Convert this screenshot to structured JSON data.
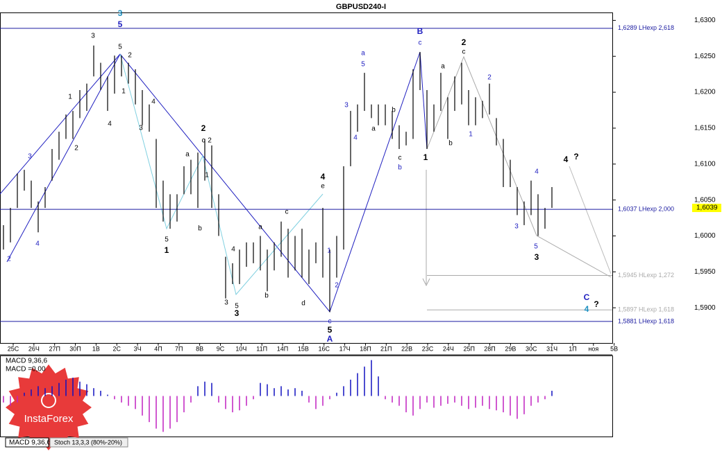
{
  "chart_data": {
    "type": "ohlc",
    "title": "GBPUSD240-I",
    "high": [
      1.6015,
      1.6039,
      1.6087,
      1.6092,
      1.6077,
      1.6048,
      1.6068,
      1.6121,
      1.6145,
      1.6169,
      1.6174,
      1.6203,
      1.6212,
      1.6265,
      1.6241,
      1.6222,
      1.6251,
      1.6251,
      1.6241,
      1.6232,
      1.6203,
      1.6183,
      1.6135,
      1.6077,
      1.6058,
      1.6058,
      1.6097,
      1.6106,
      1.6116,
      1.6135,
      1.6126,
      1.6058,
      1.5971,
      1.5962,
      1.5981,
      1.5991,
      1.5991,
      1.6,
      1.5981,
      1.5991,
      1.602,
      1.601,
      1.6,
      1.601,
      1.5981,
      1.5991,
      1.6039,
      1.5981,
      1.6,
      1.6097,
      1.6174,
      1.6183,
      1.6227,
      1.6183,
      1.6183,
      1.6183,
      1.6174,
      1.6154,
      1.6145,
      1.6232,
      1.6256,
      1.6203,
      1.6183,
      1.6227,
      1.6193,
      1.6222,
      1.6241,
      1.6203,
      1.6193,
      1.6188,
      1.6212,
      1.6164,
      1.6135,
      1.6106,
      1.6068,
      1.6048,
      1.6077,
      1.6058,
      1.6039,
      1.6068
    ],
    "low": [
      1.5981,
      1.5991,
      1.6039,
      1.6063,
      1.6039,
      1.6005,
      1.6039,
      1.6077,
      1.6106,
      1.6135,
      1.6135,
      1.6164,
      1.6174,
      1.6222,
      1.6203,
      1.6174,
      1.6198,
      1.6222,
      1.6212,
      1.6183,
      1.6154,
      1.6145,
      1.6039,
      1.602,
      1.601,
      1.602,
      1.6058,
      1.6058,
      1.6039,
      1.6077,
      1.6039,
      1.6,
      1.5913,
      1.5933,
      1.5933,
      1.5957,
      1.5962,
      1.5952,
      1.5923,
      1.5952,
      1.5971,
      1.5942,
      1.5952,
      1.5942,
      1.5933,
      1.5962,
      1.5942,
      1.5894,
      1.5942,
      1.5981,
      1.6097,
      1.6145,
      1.6174,
      1.6164,
      1.6154,
      1.6154,
      1.6135,
      1.6121,
      1.6126,
      1.6135,
      1.6203,
      1.6121,
      1.6145,
      1.6174,
      1.6135,
      1.6174,
      1.6183,
      1.6154,
      1.6154,
      1.6164,
      1.6169,
      1.6126,
      1.6068,
      1.6068,
      1.6029,
      1.6015,
      1.6029,
      1.6,
      1.601,
      1.6039
    ],
    "categories": [
      "25C",
      "26Ч",
      "27П",
      "30П",
      "1В",
      "2С",
      "3Ч",
      "4П",
      "7П",
      "8В",
      "9С",
      "10Ч",
      "11П",
      "14П",
      "15В",
      "16С",
      "17Ч",
      "18П",
      "21П",
      "22В",
      "23С",
      "24Ч",
      "25П",
      "28П",
      "29В",
      "30С",
      "31Ч",
      "1П",
      "ноя",
      "5В"
    ],
    "ylim": [
      1.5851,
      1.6311
    ],
    "yticks": [
      {
        "value": 1.63,
        "label": "1,6300"
      },
      {
        "value": 1.625,
        "label": "1,6250"
      },
      {
        "value": 1.62,
        "label": "1,6200"
      },
      {
        "value": 1.615,
        "label": "1,6150"
      },
      {
        "value": 1.61,
        "label": "1,6100"
      },
      {
        "value": 1.605,
        "label": "1,6050"
      },
      {
        "value": 1.6,
        "label": "1,6000"
      },
      {
        "value": 1.595,
        "label": "1,5950"
      },
      {
        "value": 1.59,
        "label": "1,5900"
      }
    ],
    "levels": [
      {
        "value": 1.6289,
        "label": "1,6289 LHexp 2,618",
        "color": "#1a1aa0"
      },
      {
        "value": 1.6037,
        "label": "1,6037 LHexp 2,000",
        "color": "#1a1aa0"
      },
      {
        "value": 1.5881,
        "label": "1,5881 LHexp 1,618",
        "color": "#1a1aa0"
      },
      {
        "value": 1.5945,
        "label": "1,5945 HLexp 1,272",
        "color": "#aaaaaa"
      },
      {
        "value": 1.5897,
        "label": "1,5897 HLexp 1,618",
        "color": "#aaaaaa"
      }
    ],
    "last_price": {
      "value": 1.6039,
      "label": "1,6039"
    },
    "annotations": [
      "3",
      "5",
      "5",
      "3",
      "2",
      "1",
      "4",
      "3",
      "4",
      "1",
      "2",
      "3",
      "4",
      "2",
      "2",
      "c",
      "2",
      "a",
      "1",
      "b",
      "5",
      "1",
      "4",
      "3",
      "5",
      "3",
      "b",
      "a",
      "c",
      "d",
      "4",
      "e",
      "1",
      "2",
      "c",
      "5",
      "A",
      "3",
      "4",
      "a",
      "5",
      "b",
      "a",
      "c",
      "b",
      "B",
      "c",
      "1",
      "a",
      "b",
      "2",
      "c",
      "1",
      "2",
      "4",
      "3",
      "5",
      "3",
      "4",
      "?",
      "C",
      "4",
      "?"
    ],
    "macd": {
      "label": "MACD 9,36,6",
      "value_text": "MACD =0,00",
      "ylim": [
        -60,
        60
      ],
      "values": [
        -10,
        -15,
        -10,
        5,
        10,
        15,
        12,
        15,
        20,
        25,
        28,
        22,
        18,
        12,
        8,
        2,
        -5,
        -10,
        -15,
        -20,
        -30,
        -40,
        -50,
        -55,
        -50,
        -40,
        -25,
        -10,
        15,
        22,
        20,
        -10,
        -20,
        -25,
        -22,
        -15,
        -5,
        20,
        18,
        12,
        15,
        10,
        12,
        8,
        -10,
        -20,
        -15,
        -5,
        5,
        15,
        25,
        35,
        45,
        55,
        30,
        -5,
        -10,
        -15,
        -25,
        -30,
        -20,
        -10,
        -18,
        -15,
        -12,
        -10,
        -15,
        -20,
        -18,
        -15,
        -20,
        -22,
        -25,
        -30,
        -35,
        -28,
        -15,
        -10,
        -5,
        8
      ]
    },
    "tabs": [
      "MACD 9,36,6",
      "Stoch 13,3,3 (80%-20%)"
    ],
    "logo": "InstaForex"
  }
}
